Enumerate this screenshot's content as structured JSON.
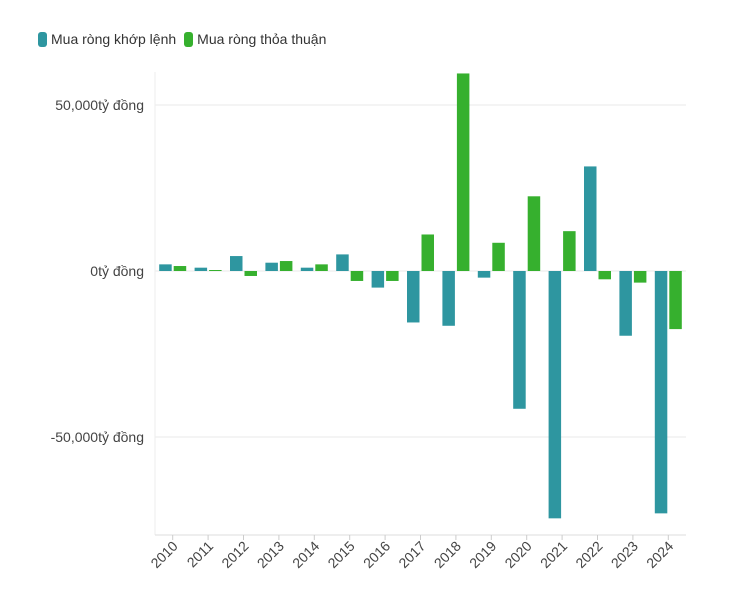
{
  "chart_data": {
    "type": "bar",
    "categories": [
      "2010",
      "2011",
      "2012",
      "2013",
      "2014",
      "2015",
      "2016",
      "2017",
      "2018",
      "2019",
      "2020",
      "2021",
      "2022",
      "2023",
      "2024"
    ],
    "series": [
      {
        "name": "Mua ròng khớp lệnh",
        "color": "#2e96a0",
        "values": [
          2000,
          1000,
          4500,
          2500,
          1000,
          5000,
          -5000,
          -15500,
          -16500,
          -2000,
          -41500,
          -74500,
          31500,
          -19500,
          -73000
        ]
      },
      {
        "name": "Mua ròng thỏa thuận",
        "color": "#36b02e",
        "values": [
          1500,
          300,
          -1500,
          3000,
          2000,
          -3000,
          -3000,
          11000,
          59500,
          8500,
          22500,
          12000,
          -2500,
          -3500,
          -17500
        ]
      }
    ],
    "yticks": [
      {
        "value": 50000,
        "label": "50,000tỷ đồng"
      },
      {
        "value": 0,
        "label": "0tỷ đồng"
      },
      {
        "value": -50000,
        "label": "-50,000tỷ đồng"
      }
    ],
    "ylim": [
      -80000,
      60000
    ],
    "grid": true,
    "legend_position": "top-left",
    "title": "",
    "xlabel": "",
    "ylabel": ""
  }
}
